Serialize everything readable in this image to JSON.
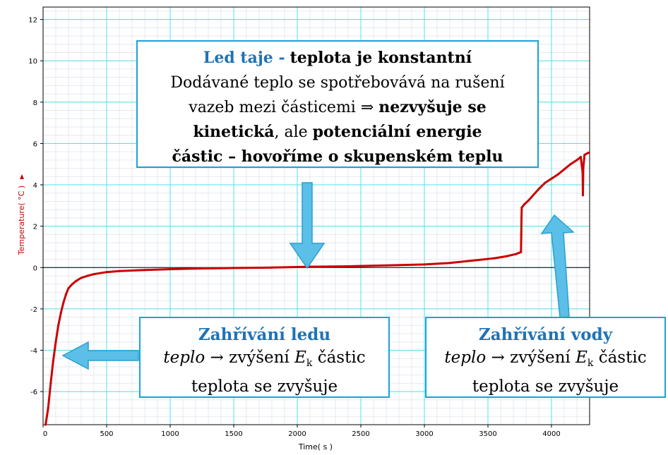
{
  "chart_data": {
    "type": "line",
    "title": "",
    "xlabel": "Time( s )",
    "ylabel": "Temperature( °C )",
    "xlim": [
      0,
      4300
    ],
    "ylim": [
      -7.6,
      12.6
    ],
    "x_ticks": [
      0,
      500,
      1000,
      1500,
      2000,
      2500,
      3000,
      3500,
      4000
    ],
    "y_ticks": [
      -6,
      -4,
      -2,
      0,
      2,
      4,
      6,
      8,
      10,
      12
    ],
    "grid": true,
    "zero_line": 0,
    "series": [
      {
        "name": "",
        "color": "#cc0000",
        "points": [
          [
            20,
            -7.6
          ],
          [
            40,
            -6.8
          ],
          [
            60,
            -5.6
          ],
          [
            80,
            -4.5
          ],
          [
            100,
            -3.6
          ],
          [
            120,
            -2.8
          ],
          [
            140,
            -2.2
          ],
          [
            160,
            -1.7
          ],
          [
            180,
            -1.3
          ],
          [
            200,
            -1.0
          ],
          [
            230,
            -0.8
          ],
          [
            260,
            -0.65
          ],
          [
            300,
            -0.5
          ],
          [
            350,
            -0.4
          ],
          [
            400,
            -0.32
          ],
          [
            500,
            -0.22
          ],
          [
            600,
            -0.17
          ],
          [
            800,
            -0.12
          ],
          [
            1000,
            -0.08
          ],
          [
            1200,
            -0.05
          ],
          [
            1500,
            -0.02
          ],
          [
            1800,
            0.0
          ],
          [
            2100,
            0.04
          ],
          [
            2400,
            0.06
          ],
          [
            2700,
            0.1
          ],
          [
            3000,
            0.15
          ],
          [
            3200,
            0.22
          ],
          [
            3400,
            0.35
          ],
          [
            3550,
            0.45
          ],
          [
            3650,
            0.55
          ],
          [
            3720,
            0.65
          ],
          [
            3760,
            0.75
          ],
          [
            3762,
            1.6
          ],
          [
            3764,
            2.4
          ],
          [
            3766,
            2.9
          ],
          [
            3785,
            3.05
          ],
          [
            3820,
            3.25
          ],
          [
            3900,
            3.8
          ],
          [
            3950,
            4.1
          ],
          [
            4000,
            4.3
          ],
          [
            4050,
            4.5
          ],
          [
            4100,
            4.75
          ],
          [
            4150,
            5.0
          ],
          [
            4200,
            5.2
          ],
          [
            4230,
            5.35
          ],
          [
            4245,
            4.6
          ],
          [
            4247,
            3.5
          ],
          [
            4250,
            4.8
          ],
          [
            4260,
            5.45
          ],
          [
            4290,
            5.55
          ]
        ]
      }
    ]
  },
  "callouts": {
    "melting": {
      "title_blue": "Led taje -",
      "title_bold": "teplota je konstantní",
      "line2": "Dodávané teplo se spotřebovává na rušení",
      "line3_a": "vazeb mezi částicemi",
      "line3_arrow": "⇒",
      "line3_bold": "nezvyšuje se",
      "line4_bold_a": "kinetická",
      "line4_mid": ", ale",
      "line4_bold_b": "potenciální energie",
      "line5_bold": "částic – hovoříme o skupenském teplu"
    },
    "ice_heating": {
      "title": "Zahřívání ledu",
      "teplo": "teplo",
      "arrow": "→",
      "increase": "zvýšení",
      "e_symbol": "E",
      "e_sub": "k",
      "particles": "částic",
      "line3": "teplota se zvyšuje"
    },
    "water_heating": {
      "title": "Zahřívání vody",
      "teplo": "teplo",
      "arrow": "→",
      "increase": "zvýšení",
      "e_symbol": "E",
      "e_sub": "k",
      "particles": "částic",
      "line3": "teplota se zvyšuje"
    }
  },
  "colors": {
    "grid_major": "#52e0e8",
    "grid_minor": "#e4eaf0",
    "series": "#cc0000",
    "arrow_fill": "#5bbfe8",
    "arrow_stroke": "#2a9fcf",
    "callout_border": "#1aa3d6",
    "title_blue": "#1f73b7"
  }
}
